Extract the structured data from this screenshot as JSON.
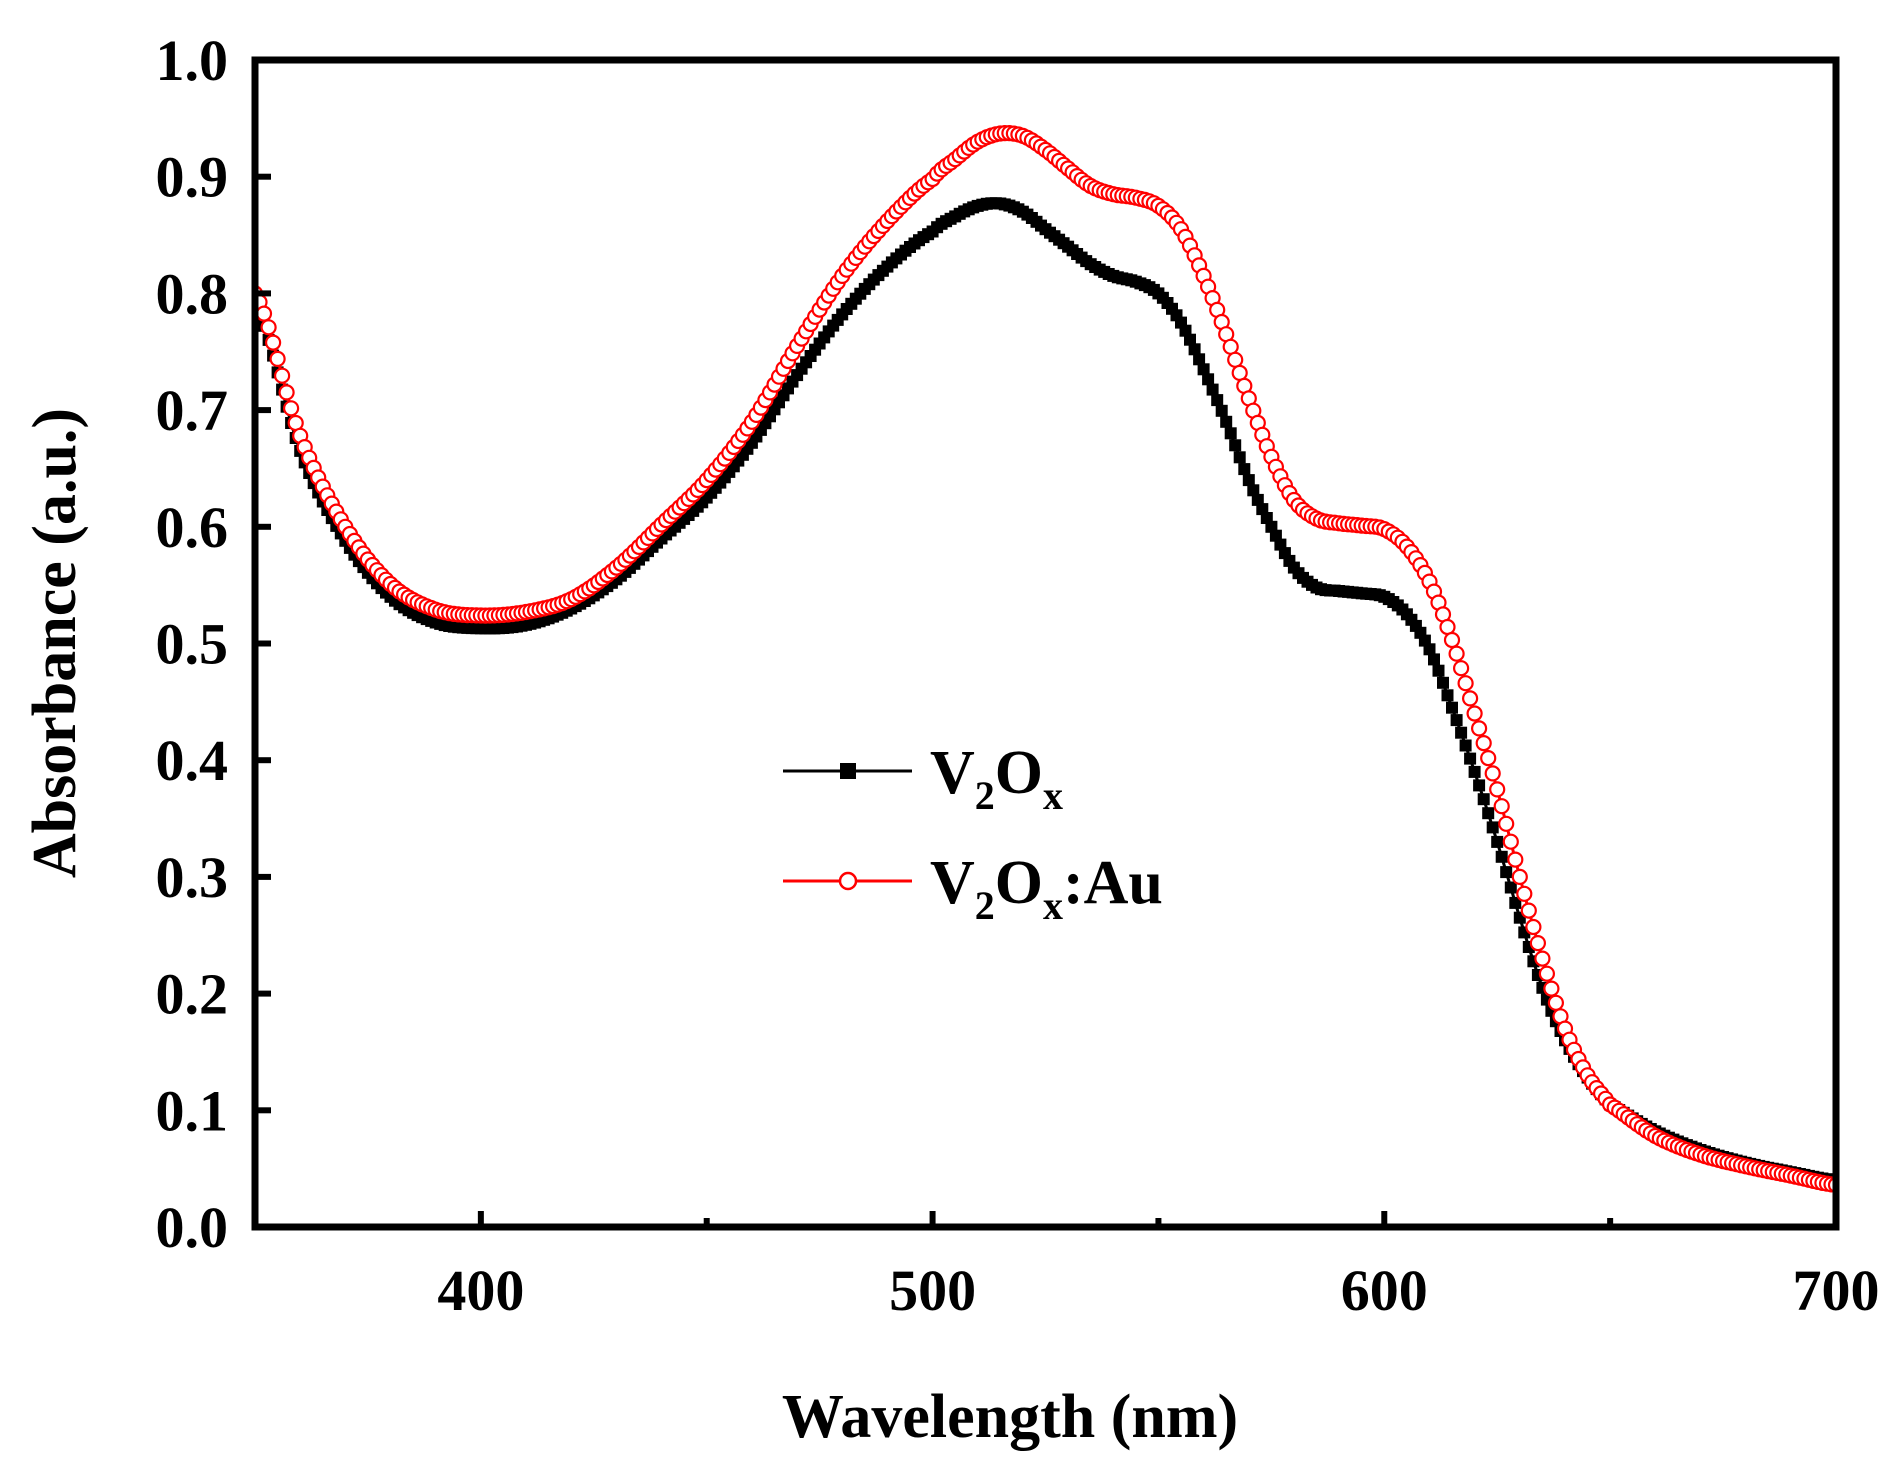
{
  "chart_data": {
    "type": "line",
    "title": "",
    "xlabel": "Wavelength (nm)",
    "ylabel": "Absorbance (a.u.)",
    "xlim": [
      350,
      700
    ],
    "ylim": [
      0.0,
      1.0
    ],
    "x_major_ticks": [
      400,
      500,
      600,
      700
    ],
    "x_minor_ticks": [
      450,
      550,
      650
    ],
    "x_tick_labels": [
      "400",
      "500",
      "600",
      "700"
    ],
    "y_ticks": [
      0.0,
      0.1,
      0.2,
      0.3,
      0.4,
      0.5,
      0.6,
      0.7,
      0.8,
      0.9,
      1.0
    ],
    "y_tick_labels": [
      "0.0",
      "0.1",
      "0.2",
      "0.3",
      "0.4",
      "0.5",
      "0.6",
      "0.7",
      "0.8",
      "0.9",
      "1.0"
    ],
    "grid": false,
    "legend_position": "center-left",
    "x": [
      350,
      360,
      370,
      380,
      390,
      400,
      410,
      420,
      430,
      440,
      450,
      460,
      470,
      480,
      490,
      500,
      505,
      510,
      515,
      520,
      525,
      530,
      535,
      540,
      545,
      550,
      555,
      560,
      565,
      570,
      575,
      580,
      585,
      590,
      595,
      600,
      605,
      610,
      615,
      620,
      625,
      630,
      635,
      640,
      645,
      650,
      660,
      670,
      680,
      690,
      700
    ],
    "series": [
      {
        "name": "V2Ox",
        "label_main": "V",
        "label_sub1": "2",
        "label_mid": "O",
        "label_sub2": "x",
        "label_tail": "",
        "color": "#000000",
        "marker": "square",
        "values": [
          0.79,
          0.665,
          0.588,
          0.54,
          0.518,
          0.513,
          0.516,
          0.53,
          0.555,
          0.59,
          0.625,
          0.672,
          0.73,
          0.782,
          0.823,
          0.853,
          0.866,
          0.875,
          0.877,
          0.87,
          0.855,
          0.84,
          0.825,
          0.815,
          0.81,
          0.8,
          0.775,
          0.735,
          0.69,
          0.64,
          0.6,
          0.565,
          0.548,
          0.545,
          0.543,
          0.54,
          0.525,
          0.495,
          0.445,
          0.39,
          0.33,
          0.265,
          0.205,
          0.16,
          0.128,
          0.105,
          0.082,
          0.066,
          0.055,
          0.047,
          0.04
        ]
      },
      {
        "name": "V2Ox:Au",
        "label_main": "V",
        "label_sub1": "2",
        "label_mid": "O",
        "label_sub2": "x",
        "label_tail": ":Au",
        "color": "#ff0000",
        "marker": "circle-open",
        "values": [
          0.8,
          0.678,
          0.6,
          0.551,
          0.529,
          0.524,
          0.527,
          0.538,
          0.565,
          0.602,
          0.64,
          0.69,
          0.755,
          0.815,
          0.862,
          0.898,
          0.915,
          0.93,
          0.937,
          0.935,
          0.923,
          0.907,
          0.892,
          0.885,
          0.882,
          0.875,
          0.855,
          0.815,
          0.765,
          0.71,
          0.66,
          0.623,
          0.607,
          0.603,
          0.601,
          0.598,
          0.583,
          0.553,
          0.503,
          0.44,
          0.375,
          0.3,
          0.23,
          0.17,
          0.13,
          0.105,
          0.078,
          0.062,
          0.052,
          0.044,
          0.036
        ]
      }
    ]
  }
}
